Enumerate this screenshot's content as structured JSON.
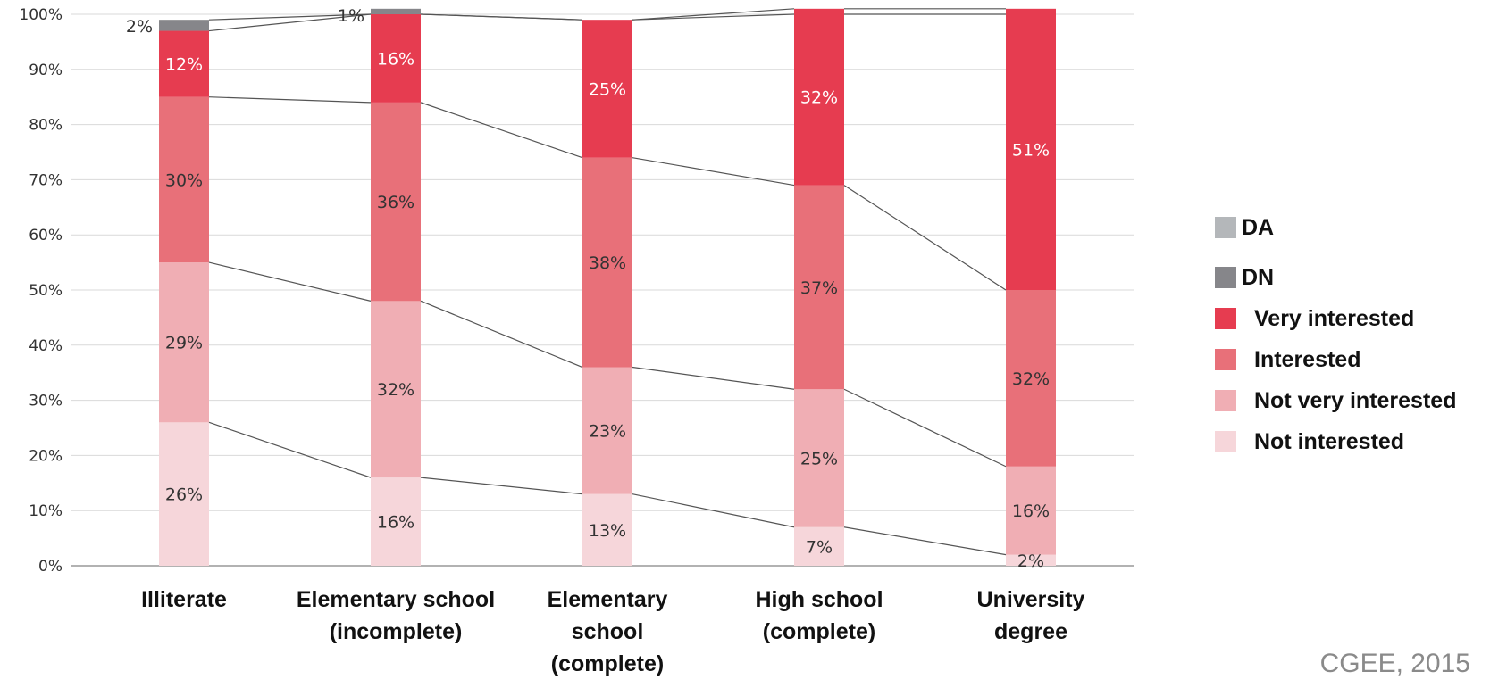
{
  "chart_data": {
    "type": "bar",
    "stacked": true,
    "categories": [
      [
        "Illiterate"
      ],
      [
        "Elementary school",
        "(incomplete)"
      ],
      [
        "Elementary",
        "school",
        "(complete)"
      ],
      [
        "High school",
        "(complete)"
      ],
      [
        "University",
        "degree"
      ]
    ],
    "series": [
      {
        "name": "Not interested",
        "values": [
          26,
          16,
          13,
          7,
          2
        ],
        "color": "#f6d6da",
        "labels": [
          "26%",
          "16%",
          "13%",
          "7%",
          "2%"
        ]
      },
      {
        "name": "Not very interested",
        "values": [
          29,
          32,
          23,
          25,
          16
        ],
        "color": "#f0aeb4",
        "labels": [
          "29%",
          "32%",
          "23%",
          "25%",
          "16%"
        ]
      },
      {
        "name": "Interested",
        "values": [
          30,
          36,
          38,
          37,
          32
        ],
        "color": "#e87079",
        "labels": [
          "30%",
          "36%",
          "38%",
          "37%",
          "32%"
        ]
      },
      {
        "name": "Very interested",
        "values": [
          12,
          16,
          25,
          32,
          51
        ],
        "color": "#e63c50",
        "labels": [
          "12%",
          "16%",
          "25%",
          "32%",
          "51%"
        ]
      },
      {
        "name": "DN",
        "values": [
          2,
          1,
          0,
          0,
          0
        ],
        "color": "#86868a",
        "labels": [
          "2%",
          "1%",
          "",
          "",
          ""
        ]
      },
      {
        "name": "DA",
        "values": [
          0,
          0,
          0,
          0,
          0
        ],
        "color": "#b4b7ba",
        "labels": [
          "",
          "",
          "",
          "",
          ""
        ]
      }
    ],
    "legend_order": [
      "DA",
      "DN",
      "Very interested",
      "Interested",
      "Not very interested",
      "Not interested"
    ],
    "yticks": [
      "0%",
      "10%",
      "20%",
      "30%",
      "40%",
      "50%",
      "60%",
      "70%",
      "80%",
      "90%",
      "100%"
    ],
    "ylim": [
      0,
      100
    ],
    "grid": true,
    "legend_position": "right",
    "connector_lines": true
  },
  "source": "CGEE, 2015"
}
